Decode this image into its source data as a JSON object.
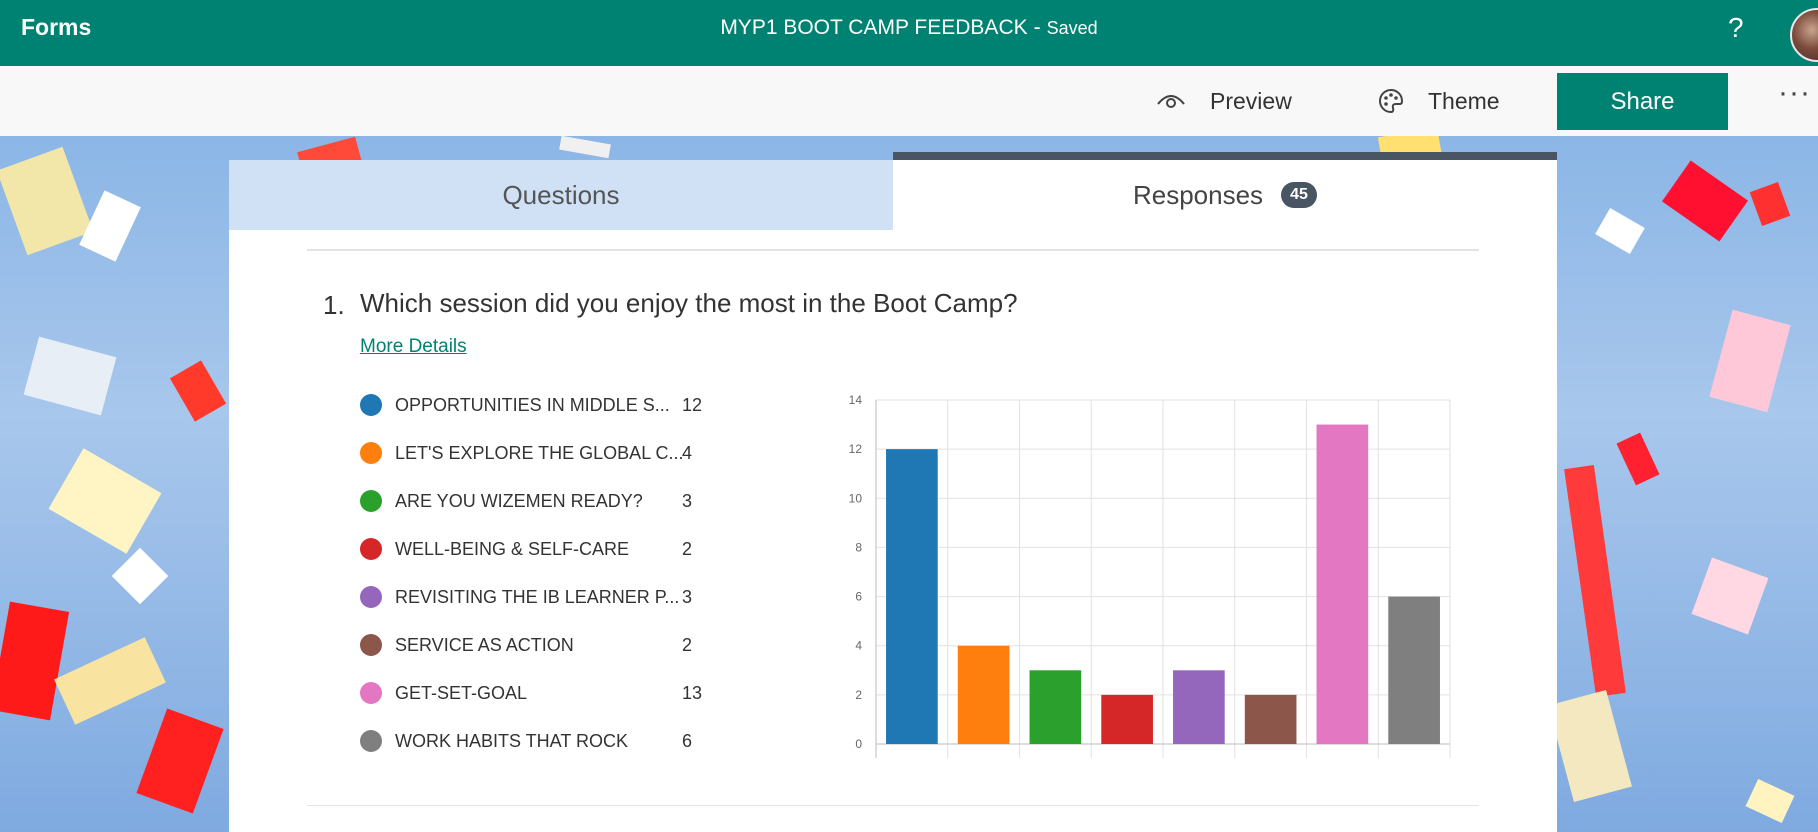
{
  "header": {
    "app_name": "Forms",
    "doc_title": "MYP1 BOOT CAMP FEEDBACK",
    "separator": "-",
    "status": "Saved",
    "help_icon": "?"
  },
  "toolbar": {
    "preview_label": "Preview",
    "theme_label": "Theme",
    "share_label": "Share",
    "more_icon": "···"
  },
  "tabs": {
    "questions_label": "Questions",
    "responses_label": "Responses",
    "responses_count": "45"
  },
  "question": {
    "number": "1.",
    "text": "Which session did you enjoy the most in the Boot Camp?",
    "more_details": "More Details"
  },
  "legend": [
    {
      "label": "OPPORTUNITIES IN MIDDLE S...",
      "count": "12",
      "color": "#1f77b4"
    },
    {
      "label": "LET'S EXPLORE THE GLOBAL C...",
      "count": "4",
      "color": "#ff7f0e"
    },
    {
      "label": "ARE YOU WIZEMEN READY?",
      "count": "3",
      "color": "#2ca02c"
    },
    {
      "label": "WELL-BEING & SELF-CARE",
      "count": "2",
      "color": "#d62728"
    },
    {
      "label": "REVISITING THE IB LEARNER P...",
      "count": "3",
      "color": "#9467bd"
    },
    {
      "label": "SERVICE AS ACTION",
      "count": "2",
      "color": "#8c564b"
    },
    {
      "label": "GET-SET-GOAL",
      "count": "13",
      "color": "#e377c2"
    },
    {
      "label": "WORK HABITS THAT ROCK",
      "count": "6",
      "color": "#7f7f7f"
    }
  ],
  "chart_data": {
    "type": "bar",
    "values": [
      12,
      4,
      3,
      2,
      3,
      2,
      13,
      6
    ],
    "colors": [
      "#1f77b4",
      "#ff7f0e",
      "#2ca02c",
      "#d62728",
      "#9467bd",
      "#8c564b",
      "#e377c2",
      "#7f7f7f"
    ],
    "ylim": [
      0,
      14
    ],
    "yticks": [
      0,
      2,
      4,
      6,
      8,
      10,
      12,
      14
    ],
    "grid": true
  }
}
